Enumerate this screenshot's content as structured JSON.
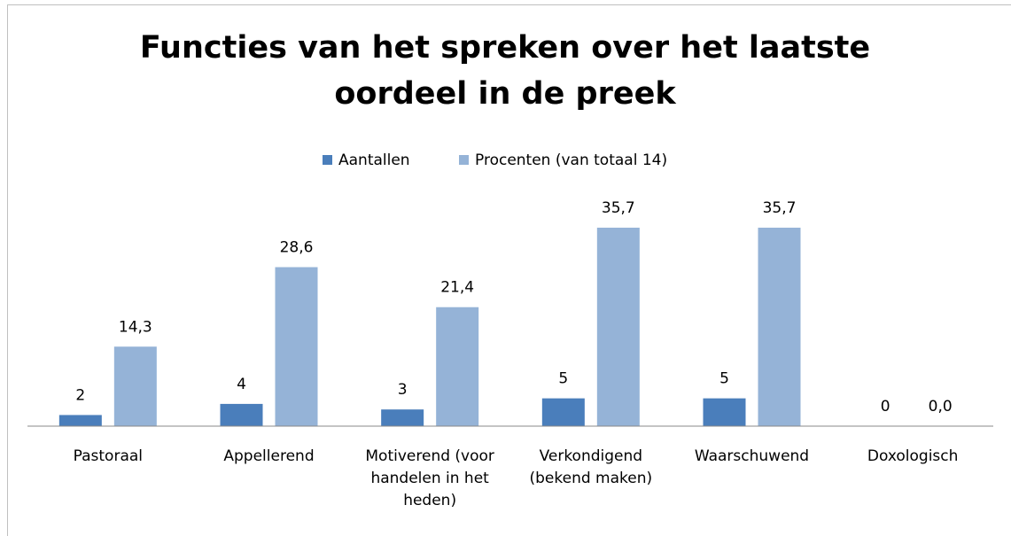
{
  "chart_data": {
    "type": "bar",
    "title": "Functies van het spreken over het laatste oordeel in de preek",
    "categories": [
      "Pastoraal",
      "Appellerend",
      "Motiverend (voor handelen in het heden)",
      "Verkondigend (bekend maken)",
      "Waarschuwend",
      "Doxologisch"
    ],
    "series": [
      {
        "name": "Aantallen",
        "color": "#4a7ebb",
        "values": [
          2,
          4,
          3,
          5,
          5,
          0
        ]
      },
      {
        "name": "Procenten (van totaal 14)",
        "color": "#95b3d7",
        "values": [
          14.3,
          28.6,
          21.4,
          35.7,
          35.7,
          0.0
        ],
        "value_labels": [
          "14,3",
          "28,6",
          "21,4",
          "35,7",
          "35,7",
          "0,0"
        ]
      }
    ],
    "ylim": [
      0,
      40
    ],
    "legend": "top"
  }
}
